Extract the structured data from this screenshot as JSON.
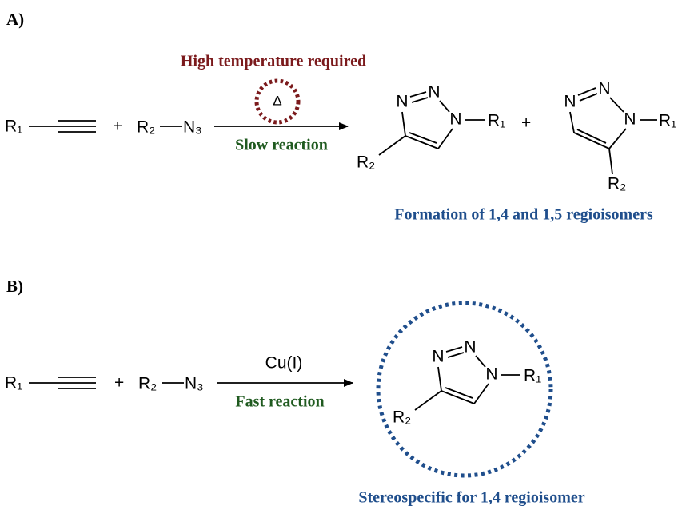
{
  "panel_a": {
    "label": "A)",
    "reactants": {
      "alkyne_group": "R₁",
      "plus": "+",
      "azide_group": "R₂",
      "azide": "N₃"
    },
    "condition_top": "High temperature required",
    "heat": "Δ",
    "condition_bottom": "Slow reaction",
    "product_1": {
      "atoms": [
        "N",
        "N",
        "N"
      ],
      "r1": "R₁",
      "r2": "R₂"
    },
    "plus": "+",
    "product_2": {
      "atoms": [
        "N",
        "N",
        "N"
      ],
      "r1": "R₁",
      "r2": "R₂"
    },
    "caption": "Formation of 1,4 and 1,5 regioisomers"
  },
  "panel_b": {
    "label": "B)",
    "reactants": {
      "alkyne_group": "R₁",
      "plus": "+",
      "azide_group": "R₂",
      "azide": "N₃"
    },
    "condition_top": "Cu(I)",
    "condition_bottom": "Fast reaction",
    "product": {
      "atoms": [
        "N",
        "N",
        "N"
      ],
      "r1": "R₁",
      "r2": "R₂"
    },
    "caption": "Stereospecific for 1,4 regioisomer"
  }
}
